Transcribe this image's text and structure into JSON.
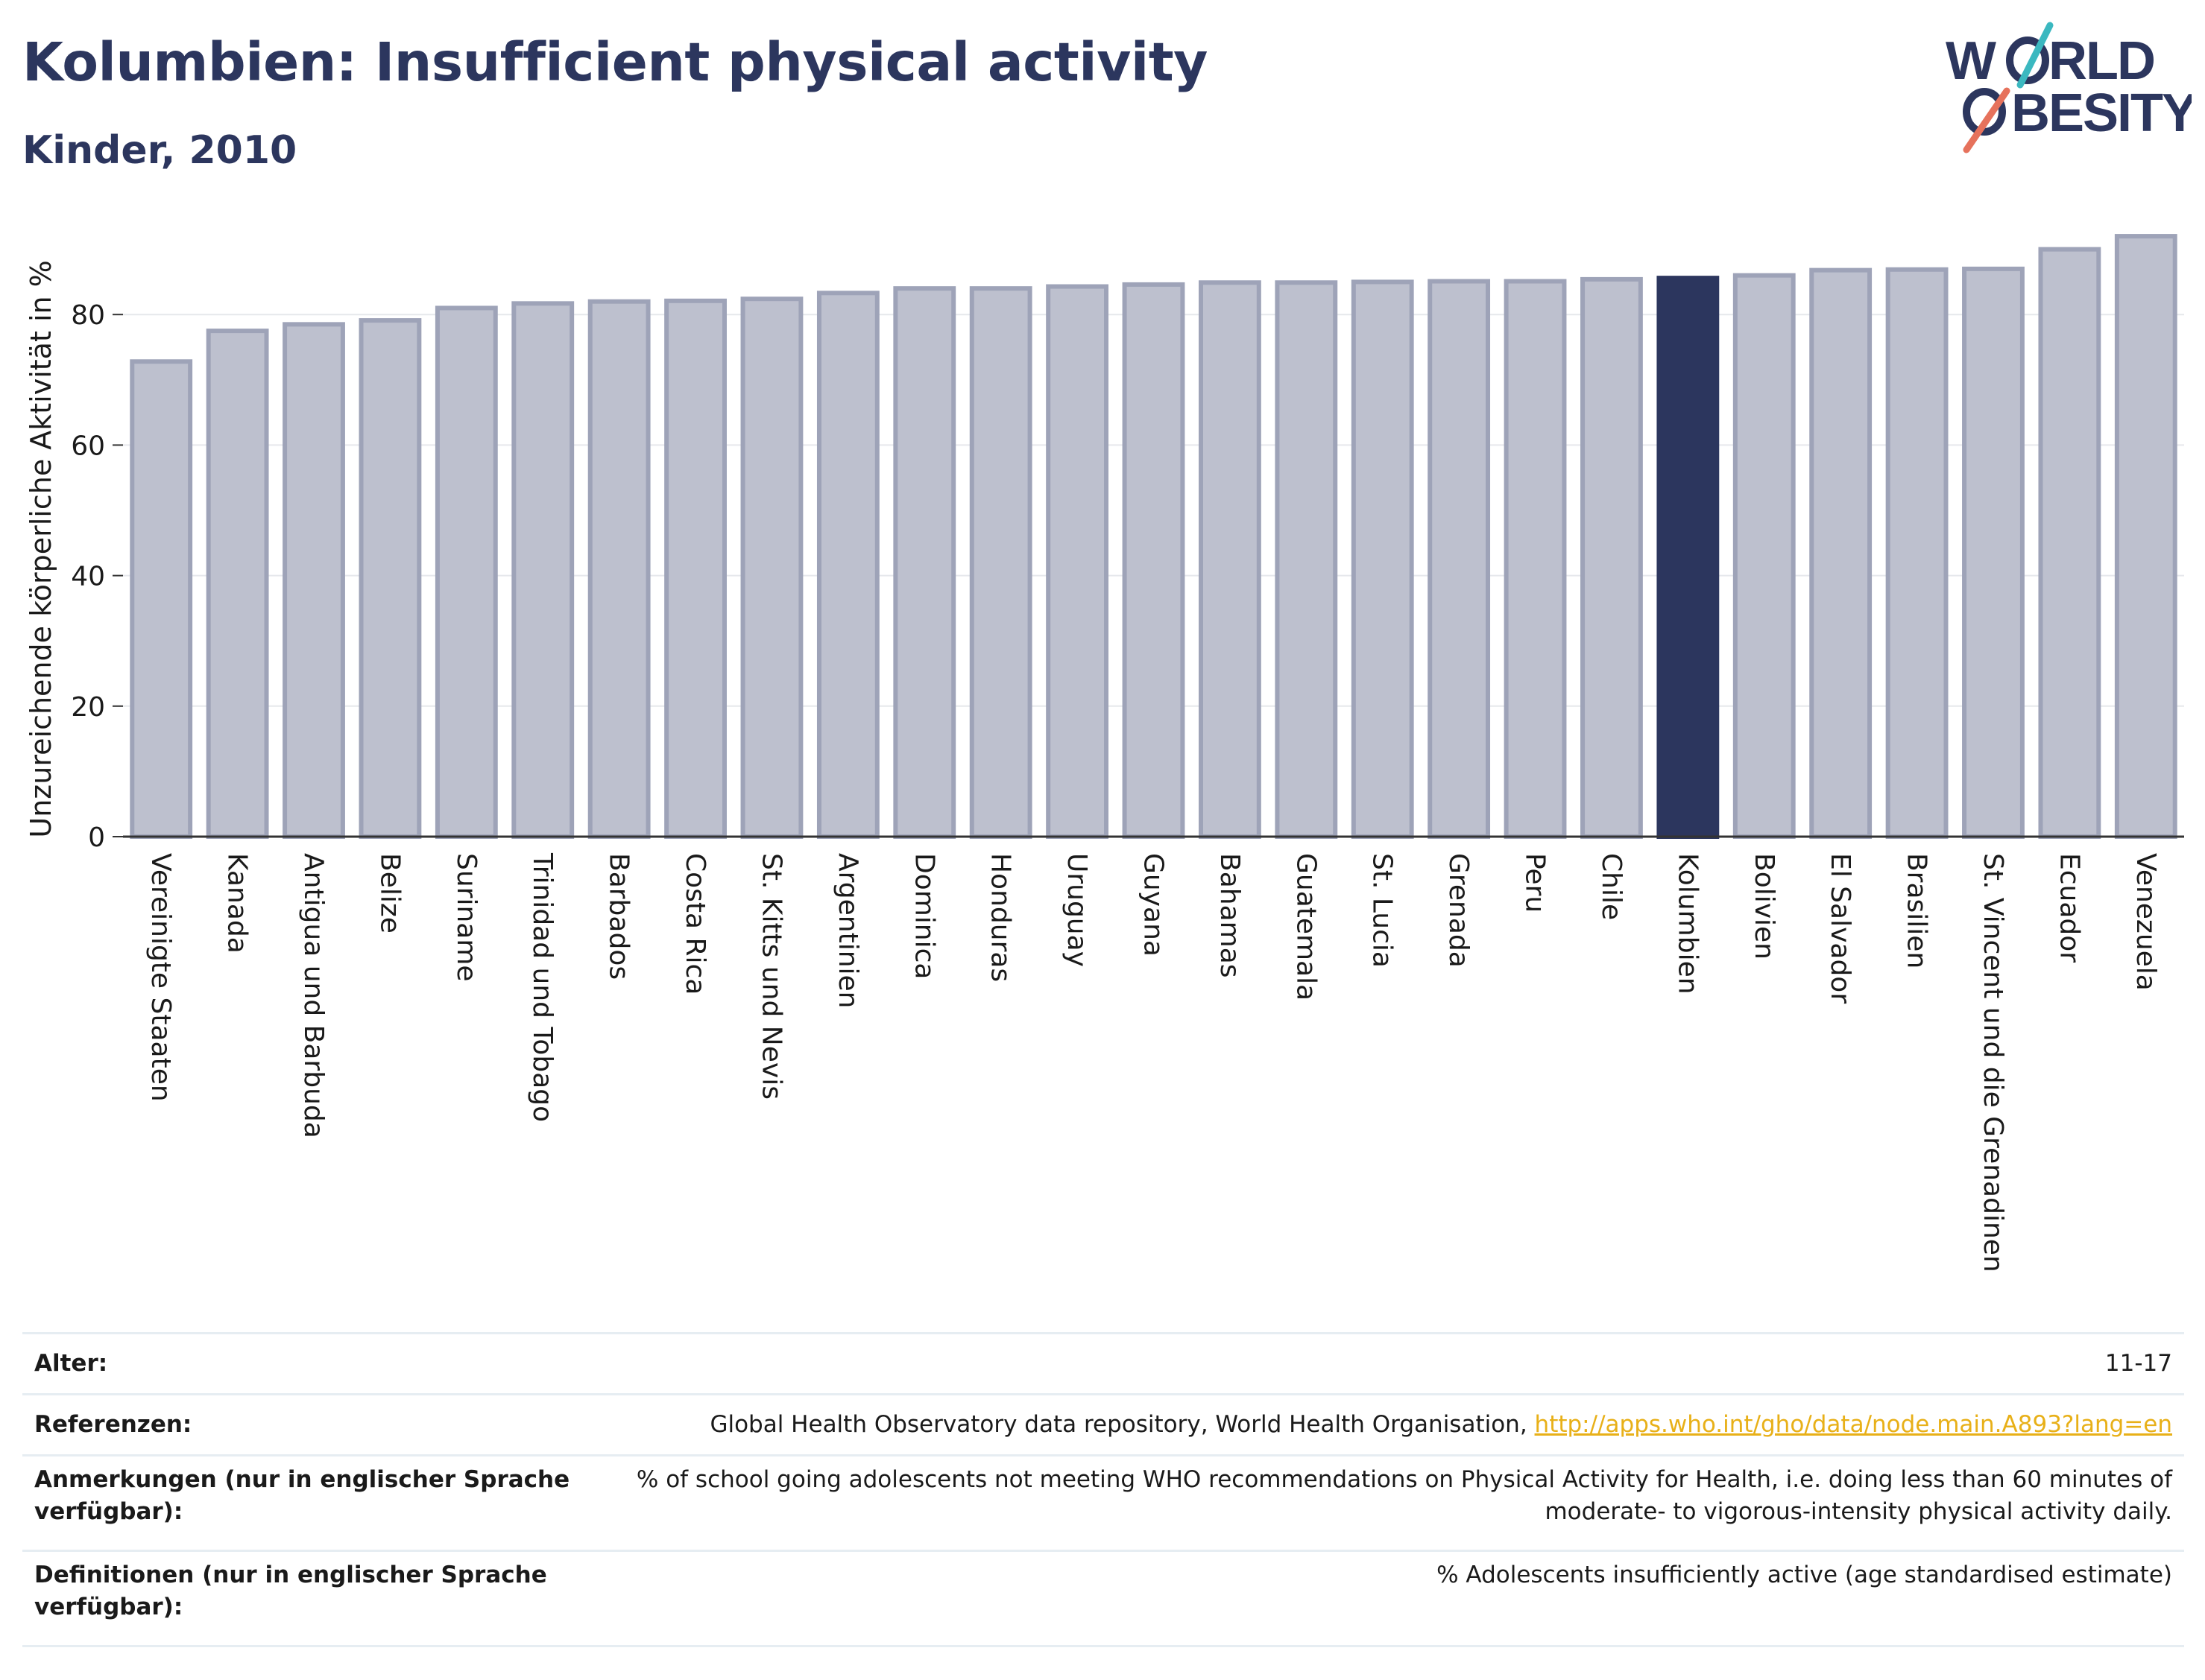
{
  "header": {
    "title": "Kolumbien: Insufficient physical activity",
    "subtitle": "Kinder, 2010"
  },
  "logo": {
    "line1": "W RLD",
    "line2": "BESITY",
    "text": "WORLD OBESITY"
  },
  "colors": {
    "bar": "#bdc0ce",
    "bar_border": "#9ea3b8",
    "highlight": "#2c365e",
    "title": "#2c365e",
    "link": "#e8b018",
    "logo_teal": "#3bb8c0",
    "logo_coral": "#e6725c"
  },
  "chart_data": {
    "type": "bar",
    "ylabel": "Unzureichende körperliche Aktivität in %",
    "xlabel": "",
    "ylim": [
      0,
      95
    ],
    "yticks": [
      0,
      20,
      40,
      60,
      80
    ],
    "grid": true,
    "highlight": "Kolumbien",
    "categories": [
      "Vereinigte Staaten",
      "Kanada",
      "Antigua und Barbuda",
      "Belize",
      "Suriname",
      "Trinidad und Tobago",
      "Barbados",
      "Costa Rica",
      "St. Kitts und Nevis",
      "Argentinien",
      "Dominica",
      "Honduras",
      "Uruguay",
      "Guyana",
      "Bahamas",
      "Guatemala",
      "St. Lucia",
      "Grenada",
      "Peru",
      "Chile",
      "Kolumbien",
      "Bolivien",
      "El Salvador",
      "Brasilien",
      "St. Vincent und die Grenadinen",
      "Ecuador",
      "Venezuela"
    ],
    "values": [
      72.8,
      77.5,
      78.5,
      79.1,
      81.0,
      81.7,
      82.0,
      82.1,
      82.4,
      83.3,
      84.0,
      84.0,
      84.3,
      84.6,
      84.9,
      84.9,
      85.0,
      85.1,
      85.1,
      85.4,
      85.6,
      86.0,
      86.8,
      86.9,
      87.0,
      90.0,
      92.0
    ]
  },
  "meta": [
    {
      "label": "Alter:",
      "value": "11-17"
    },
    {
      "label": "Referenzen:",
      "value": "Global Health Observatory data repository, World Health Organisation, ",
      "link": "http://apps.who.int/gho/data/node.main.A893?lang=en"
    },
    {
      "label": "Anmerkungen (nur in englischer Sprache verfügbar):",
      "value": "% of school going adolescents not meeting WHO recommendations on Physical Activity for Health, i.e. doing less than 60 minutes of moderate- to vigorous-intensity physical activity daily."
    },
    {
      "label": "Definitionen (nur in englischer Sprache verfügbar):",
      "value": "% Adolescents insufficiently active (age standardised estimate)"
    }
  ]
}
